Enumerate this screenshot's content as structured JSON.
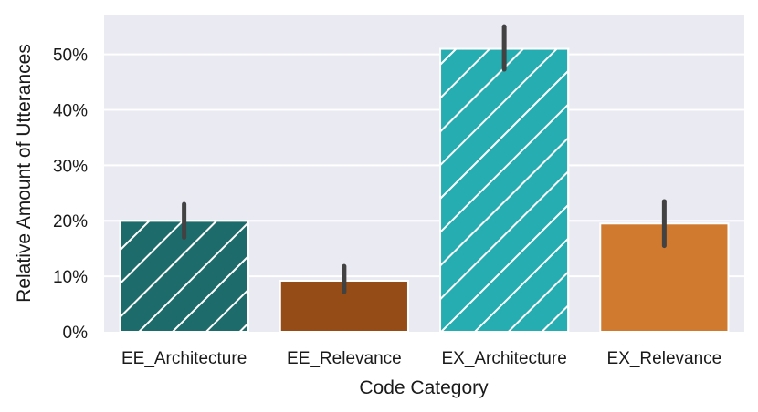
{
  "chart_data": {
    "type": "bar",
    "title": "",
    "xlabel": "Code Category",
    "ylabel": "Relative Amount of Utterances",
    "categories": [
      "EE_Architecture",
      "EE_Relevance",
      "EX_Architecture",
      "EX_Relevance"
    ],
    "values": [
      20,
      9.2,
      51,
      19.5
    ],
    "error_bars": [
      {
        "low": 17,
        "high": 23
      },
      {
        "low": 7.2,
        "high": 11.8
      },
      {
        "low": 47.3,
        "high": 55
      },
      {
        "low": 15.5,
        "high": 23.5
      }
    ],
    "colors": [
      "#1e6b6b",
      "#954c17",
      "#25adb2",
      "#cf7a2f"
    ],
    "hatched": [
      true,
      false,
      true,
      false
    ],
    "ylim": [
      0,
      57
    ],
    "yticks": [
      0,
      10,
      20,
      30,
      40,
      50
    ],
    "ytick_labels": [
      "0%",
      "10%",
      "20%",
      "30%",
      "40%",
      "50%"
    ],
    "grid": true,
    "background": "#eaeaf2"
  }
}
